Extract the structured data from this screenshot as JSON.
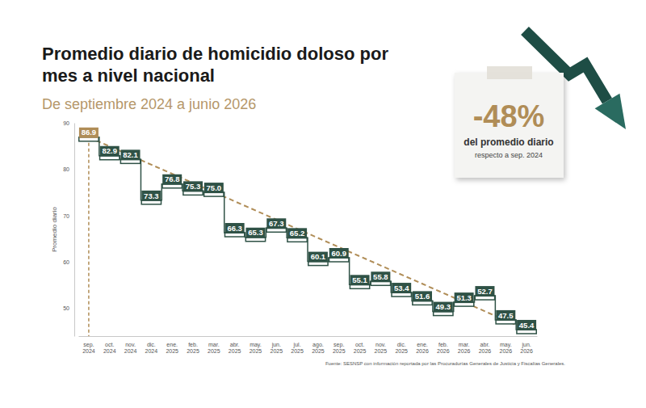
{
  "chart_data": {
    "type": "line",
    "title": "Promedio diario de homicidio doloso por mes a nivel nacional",
    "subtitle": "De septiembre 2024 a junio 2026",
    "y_label": "Promedio diario",
    "categories": [
      "sep. 2024",
      "oct. 2024",
      "nov. 2024",
      "dic. 2024",
      "ene. 2025",
      "feb. 2025",
      "mar. 2025",
      "abr. 2025",
      "may. 2025",
      "jun. 2025",
      "jul. 2025",
      "ago. 2025",
      "sep. 2025",
      "oct. 2025",
      "nov. 2025",
      "dic. 2025",
      "ene. 2026",
      "feb. 2026",
      "mar. 2026",
      "abr. 2026",
      "may. 2026",
      "jun. 2026"
    ],
    "values": [
      86.9,
      82.9,
      82.1,
      73.3,
      76.8,
      75.3,
      75.0,
      66.3,
      65.3,
      67.3,
      65.2,
      60.1,
      60.9,
      55.1,
      55.8,
      53.4,
      51.6,
      49.3,
      51.3,
      52.7,
      47.5,
      45.4
    ],
    "value_labels": [
      "86.9",
      "82.9",
      "82.1",
      "73.3",
      "76.8",
      "75.3",
      "75.0",
      "66.3",
      "65.3",
      "67.3",
      "65.2",
      "60.1",
      "60.9",
      "55.1",
      "55.8",
      "53.4",
      "51.6",
      "49.3",
      "51.3",
      "52.7",
      "47.5",
      "45.4"
    ],
    "ylim": [
      44,
      90
    ],
    "yticks": [
      50,
      60,
      70,
      80,
      90
    ],
    "grid": false,
    "data_labels": true,
    "line_style": "step",
    "color": "#2f5246",
    "annotations": [
      "-48%",
      "del promedio diario",
      "respecto a sep. 2024"
    ],
    "source": "Fuente: SESNSP con información reportada por las Procuradurías Generales de Justicia y Fiscalías Generales."
  }
}
